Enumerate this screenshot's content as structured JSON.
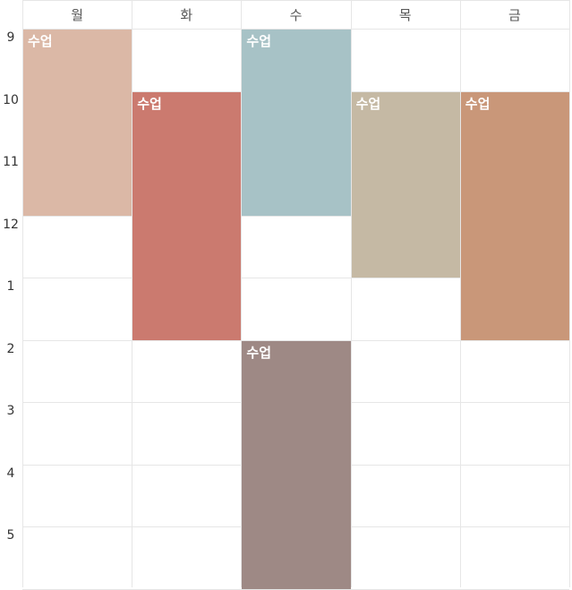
{
  "days": [
    "월",
    "화",
    "수",
    "목",
    "금"
  ],
  "hours": [
    "9",
    "10",
    "11",
    "12",
    "1",
    "2",
    "3",
    "4",
    "5"
  ],
  "classes": [
    {
      "title": "수업",
      "day": 0,
      "start_hour_index": 0,
      "duration_hours": 3,
      "color": "#dbb8a6"
    },
    {
      "title": "수업",
      "day": 1,
      "start_hour_index": 1,
      "duration_hours": 4,
      "color": "#cb7a6f"
    },
    {
      "title": "수업",
      "day": 2,
      "start_hour_index": 0,
      "duration_hours": 3,
      "color": "#a7c2c6"
    },
    {
      "title": "수업",
      "day": 3,
      "start_hour_index": 1,
      "duration_hours": 3,
      "color": "#c5b9a4"
    },
    {
      "title": "수업",
      "day": 4,
      "start_hour_index": 1,
      "duration_hours": 4,
      "color": "#c99779"
    },
    {
      "title": "수업",
      "day": 2,
      "start_hour_index": 5,
      "duration_hours": 4,
      "color": "#9e8985"
    }
  ]
}
